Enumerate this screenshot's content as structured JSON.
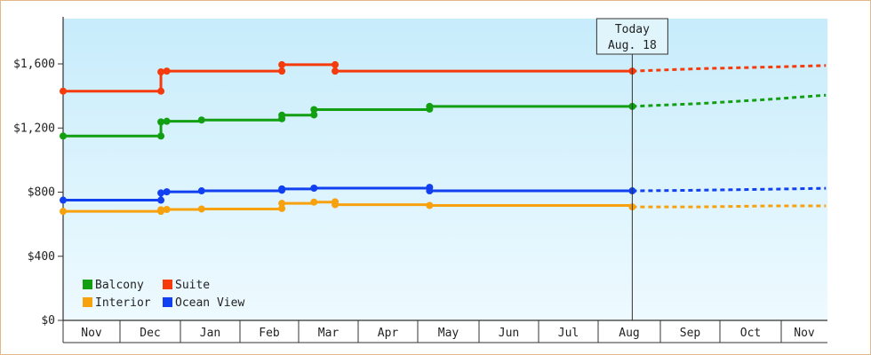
{
  "chart_data": {
    "type": "line",
    "step": true,
    "y_tick_labels": [
      "$0",
      "$400",
      "$800",
      "$1,200",
      "$1,600"
    ],
    "y_ticks": [
      0,
      400,
      800,
      1200,
      1600
    ],
    "ylim": [
      0,
      1600
    ],
    "x_tick_labels": [
      "Nov",
      "Dec",
      "Jan",
      "Feb",
      "Mar",
      "Apr",
      "May",
      "Jun",
      "Jul",
      "Aug",
      "Sep",
      "Oct",
      "Nov"
    ],
    "today": {
      "line1": "Today",
      "line2": "Aug. 18",
      "x": "2023-08-18"
    },
    "legend": {
      "position": "bottom-left"
    },
    "series": [
      {
        "name": "Balcony",
        "color": "#12a012",
        "points": [
          [
            "2022-11-01",
            1150
          ],
          [
            "2022-12-22",
            1150
          ],
          [
            "2022-12-22",
            1238
          ],
          [
            "2022-12-25",
            1242
          ],
          [
            "2023-01-12",
            1250
          ],
          [
            "2023-02-21",
            1258
          ],
          [
            "2023-02-21",
            1280
          ],
          [
            "2023-03-09",
            1282
          ],
          [
            "2023-03-09",
            1315
          ],
          [
            "2023-05-07",
            1318
          ],
          [
            "2023-05-07",
            1335
          ],
          [
            "2023-08-18",
            1335
          ]
        ],
        "forecast": [
          [
            "2023-08-18",
            1335
          ],
          [
            "2023-09-20",
            1352
          ],
          [
            "2023-10-25",
            1378
          ],
          [
            "2023-11-30",
            1405
          ]
        ]
      },
      {
        "name": "Suite",
        "color": "#f53b0c",
        "points": [
          [
            "2022-11-01",
            1430
          ],
          [
            "2022-12-22",
            1430
          ],
          [
            "2022-12-22",
            1550
          ],
          [
            "2022-12-25",
            1555
          ],
          [
            "2023-02-21",
            1555
          ],
          [
            "2023-02-21",
            1595
          ],
          [
            "2023-03-20",
            1595
          ],
          [
            "2023-03-20",
            1555
          ],
          [
            "2023-08-18",
            1555
          ]
        ],
        "forecast": [
          [
            "2023-08-18",
            1555
          ],
          [
            "2023-09-20",
            1570
          ],
          [
            "2023-10-25",
            1580
          ],
          [
            "2023-11-30",
            1590
          ]
        ]
      },
      {
        "name": "Interior",
        "color": "#f7a10e",
        "points": [
          [
            "2022-11-01",
            680
          ],
          [
            "2022-12-22",
            680
          ],
          [
            "2022-12-22",
            690
          ],
          [
            "2022-12-25",
            692
          ],
          [
            "2023-01-12",
            695
          ],
          [
            "2023-02-21",
            698
          ],
          [
            "2023-02-21",
            730
          ],
          [
            "2023-03-09",
            738
          ],
          [
            "2023-03-20",
            740
          ],
          [
            "2023-03-20",
            722
          ],
          [
            "2023-05-07",
            717
          ],
          [
            "2023-08-18",
            708
          ]
        ],
        "forecast": [
          [
            "2023-08-18",
            708
          ],
          [
            "2023-09-20",
            708
          ],
          [
            "2023-10-25",
            714
          ],
          [
            "2023-11-30",
            714
          ]
        ]
      },
      {
        "name": "Ocean View",
        "color": "#1040f0",
        "points": [
          [
            "2022-11-01",
            750
          ],
          [
            "2022-12-22",
            750
          ],
          [
            "2022-12-22",
            795
          ],
          [
            "2022-12-25",
            802
          ],
          [
            "2023-01-12",
            808
          ],
          [
            "2023-02-21",
            812
          ],
          [
            "2023-02-21",
            820
          ],
          [
            "2023-03-09",
            825
          ],
          [
            "2023-05-07",
            830
          ],
          [
            "2023-05-07",
            808
          ],
          [
            "2023-08-18",
            808
          ]
        ],
        "forecast": [
          [
            "2023-08-18",
            808
          ],
          [
            "2023-09-20",
            812
          ],
          [
            "2023-10-25",
            818
          ],
          [
            "2023-11-30",
            824
          ]
        ]
      }
    ]
  }
}
